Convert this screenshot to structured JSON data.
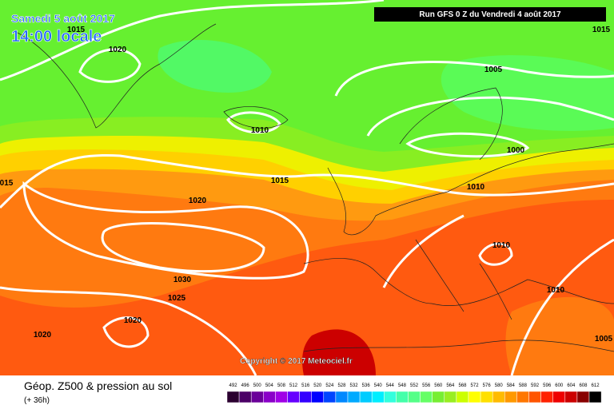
{
  "header": {
    "date": "Samedi 5 août 2017",
    "time": "14:00 locale",
    "run": "Run GFS 0 Z du Vendredi 4 août 2017"
  },
  "isobars": [
    "1015",
    "1020",
    "1015",
    "1005",
    "1010",
    "1000",
    "015",
    "1015",
    "1020",
    "1010",
    "1010",
    "1030",
    "1025",
    "1010",
    "1020",
    "1020",
    "1005"
  ],
  "copyright": "Copyright © 2017 Meteociel.fr",
  "footer": {
    "title": "Géop. Z500 & pression au sol",
    "lead": "(+ 36h)"
  },
  "legend": {
    "levels": [
      492,
      496,
      500,
      504,
      508,
      512,
      516,
      520,
      524,
      528,
      532,
      536,
      540,
      544,
      548,
      552,
      556,
      560,
      564,
      568,
      572,
      576,
      580,
      584,
      588,
      592,
      596,
      600,
      604,
      608,
      612
    ],
    "colors": [
      "#2b0030",
      "#4b0066",
      "#6a0099",
      "#8a00c8",
      "#a000e6",
      "#6600ff",
      "#3300ff",
      "#0000ff",
      "#0044ff",
      "#0088ff",
      "#00aaff",
      "#00ccff",
      "#00eeff",
      "#33ffdd",
      "#44ffaa",
      "#55ff88",
      "#66ff66",
      "#77ee33",
      "#99ee22",
      "#ccff00",
      "#ffff00",
      "#ffe000",
      "#ffbb00",
      "#ff9900",
      "#ff7700",
      "#ff5500",
      "#ff2200",
      "#ee0000",
      "#cc0000",
      "#880000",
      "#000000"
    ]
  }
}
